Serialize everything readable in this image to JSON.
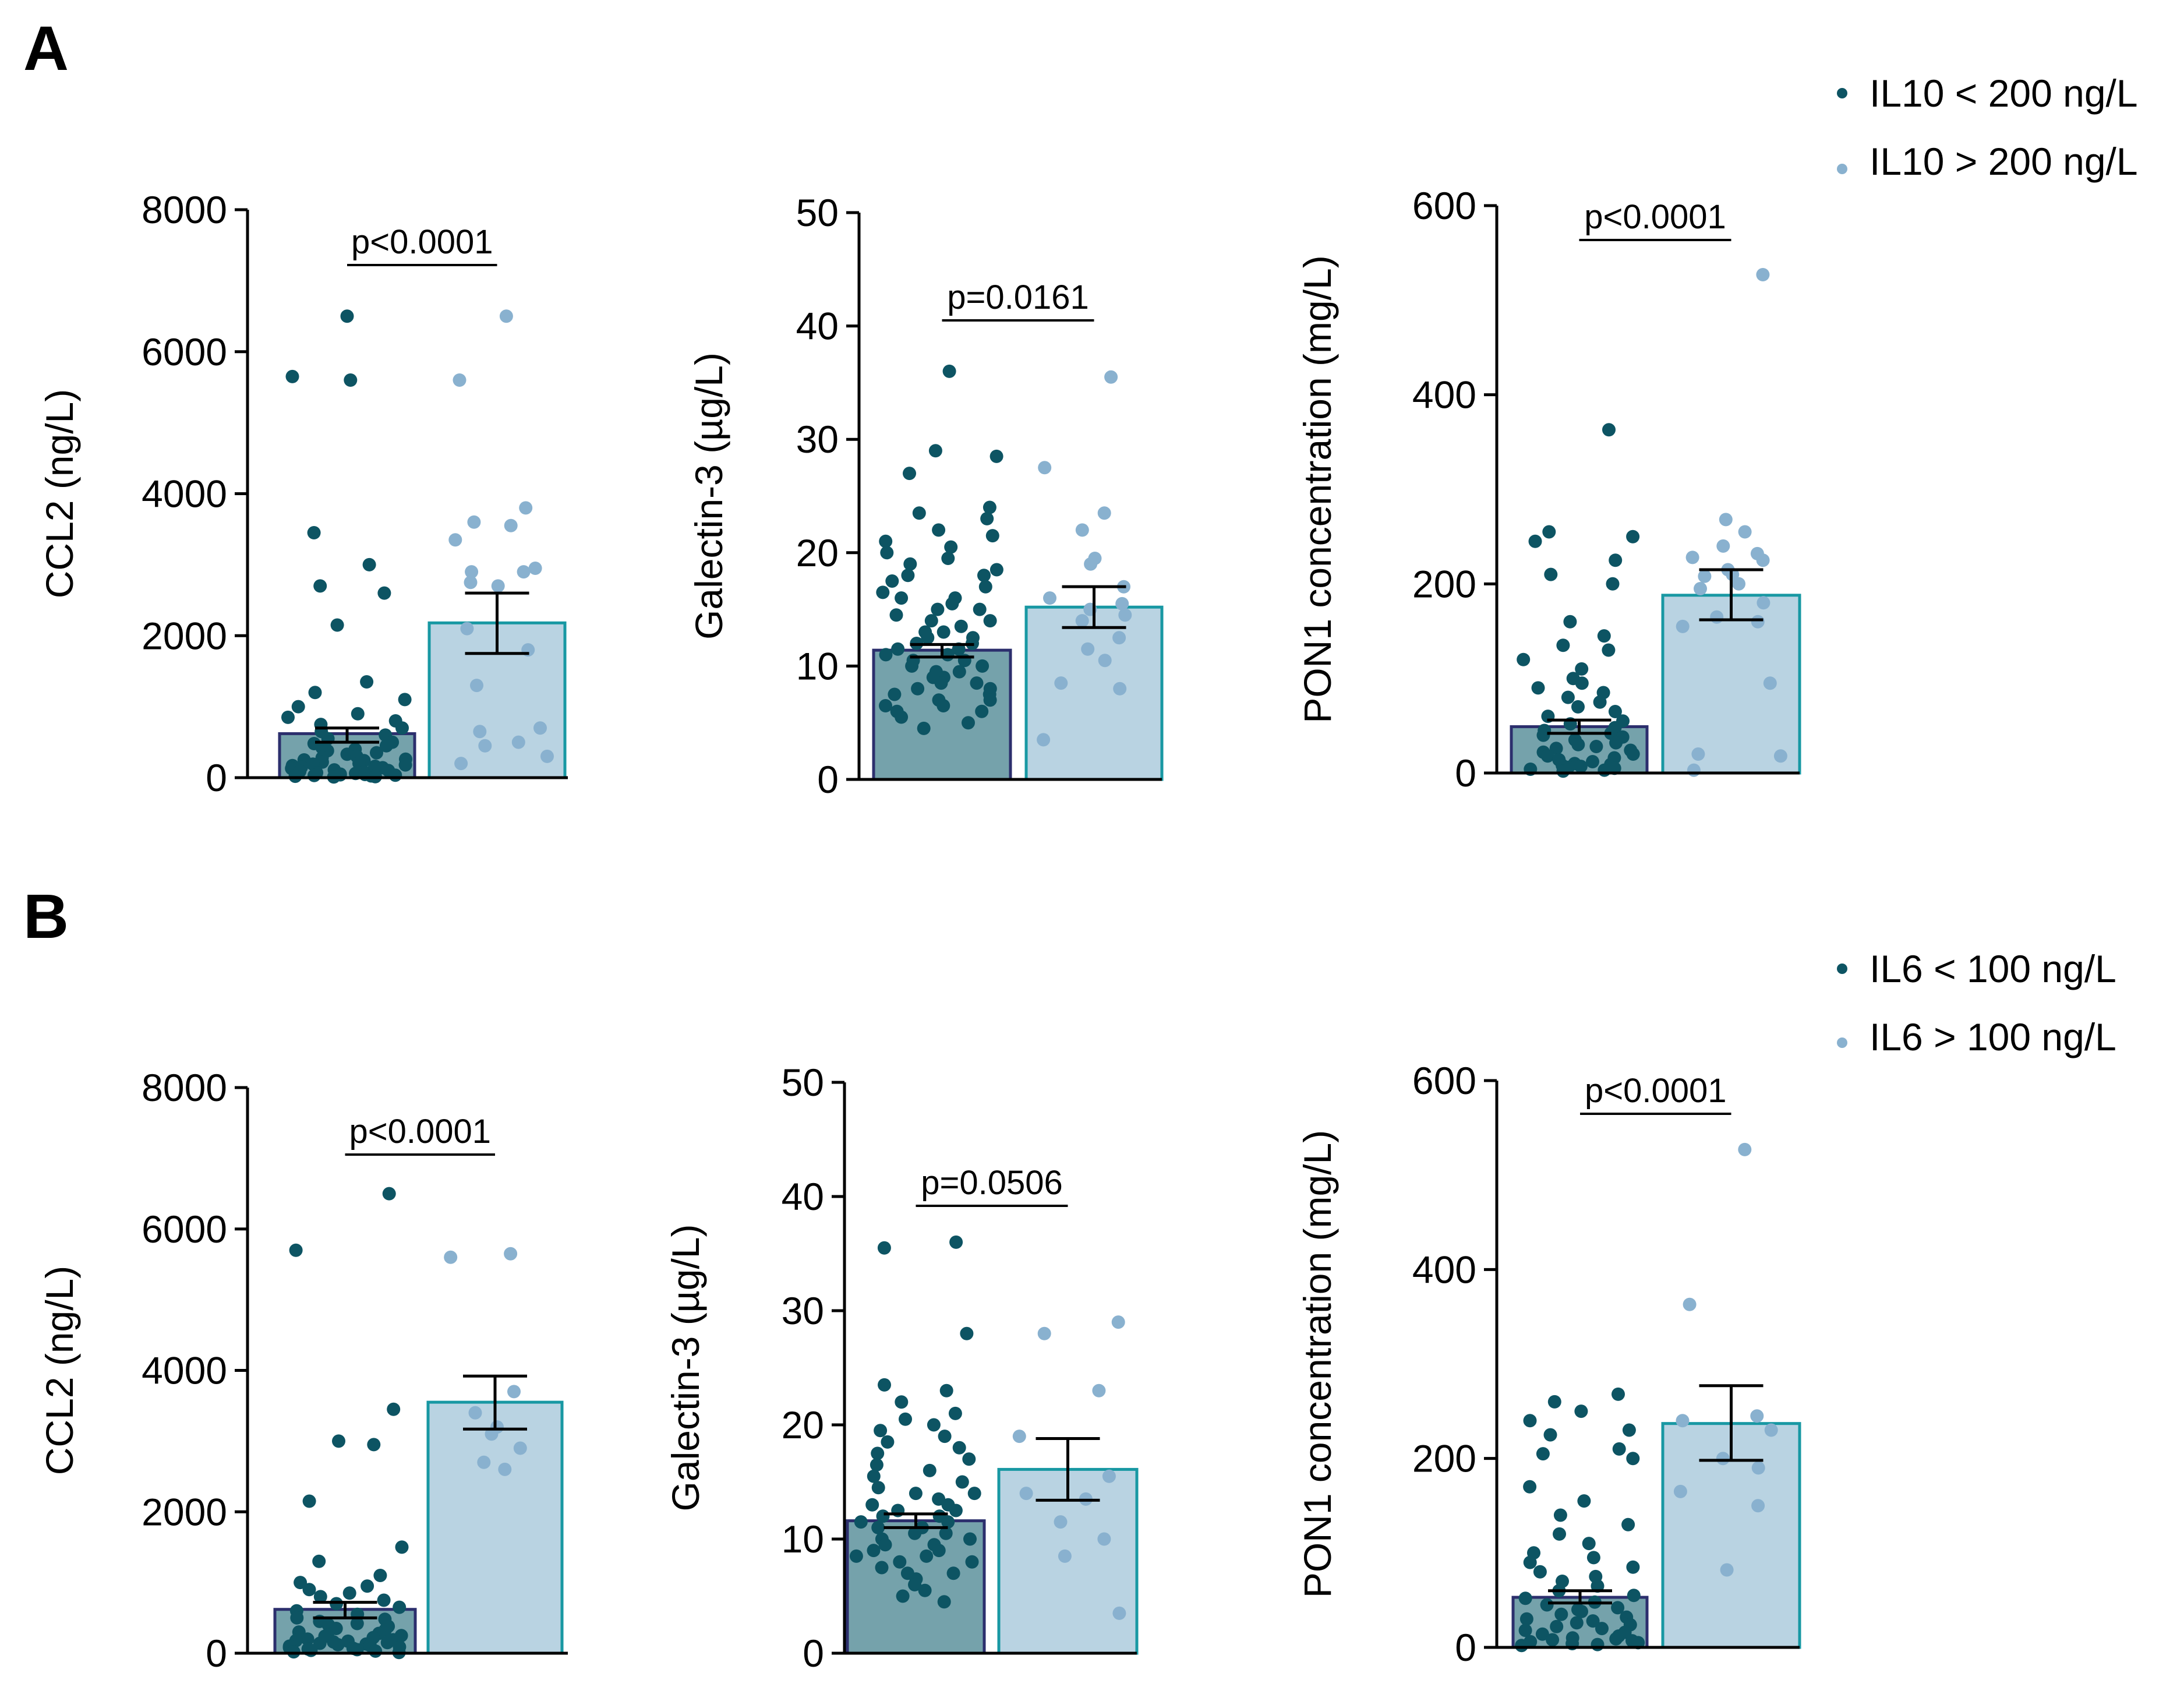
{
  "panels": [
    {
      "label": "A",
      "legend": [
        "IL10 < 200 ng/L",
        "IL10 > 200 ng/L"
      ]
    },
    {
      "label": "B",
      "legend": [
        "IL6 < 100 ng/L",
        "IL6 > 100 ng/L"
      ]
    }
  ],
  "colors": {
    "low_dot": "#0d5463",
    "high_dot": "#89b1cf",
    "low_bar_fill": "#75a2ab",
    "high_bar_fill": "#b9d3e2",
    "low_bar_edge": "#2c2f6d",
    "high_bar_edge": "#1898a3"
  },
  "chart_data": [
    {
      "panel": "A",
      "type": "bar",
      "ylabel": "CCL2 (ng/L)",
      "ylim": [
        0,
        8000
      ],
      "yticks": [
        0,
        2000,
        4000,
        6000,
        8000
      ],
      "p_label": "p<0.0001",
      "series": [
        {
          "name": "IL10 < 200 ng/L",
          "mean": 620,
          "sem_low": 500,
          "sem_high": 700,
          "points": [
            6500,
            5650,
            5600,
            3450,
            3000,
            2700,
            2600,
            2150,
            1350,
            1200,
            1100,
            1000,
            900,
            850,
            800,
            750,
            700,
            650,
            600,
            550,
            500,
            480,
            450,
            420,
            400,
            380,
            350,
            330,
            300,
            280,
            260,
            250,
            240,
            220,
            200,
            190,
            180,
            170,
            160,
            150,
            140,
            130,
            120,
            110,
            100,
            90,
            80,
            70,
            60,
            50,
            45,
            40,
            35,
            30,
            25,
            20,
            15,
            10
          ]
        },
        {
          "name": "IL10 > 200 ng/L",
          "mean": 2180,
          "sem_low": 1750,
          "sem_high": 2600,
          "points": [
            6500,
            5600,
            3800,
            3600,
            3550,
            3350,
            2950,
            2900,
            2900,
            2750,
            2700,
            2100,
            1800,
            1300,
            700,
            650,
            500,
            450,
            300,
            200
          ]
        }
      ]
    },
    {
      "panel": "A",
      "type": "bar",
      "ylabel": "Galectin-3 (µg/L)",
      "ylim": [
        0,
        50
      ],
      "yticks": [
        0,
        10,
        20,
        30,
        40,
        50
      ],
      "p_label": "p=0.0161",
      "series": [
        {
          "name": "IL10 < 200 ng/L",
          "mean": 11.4,
          "sem_low": 10.8,
          "sem_high": 11.9,
          "points": [
            36,
            29,
            28.5,
            27,
            24,
            23.5,
            23,
            22,
            21.5,
            21,
            20.5,
            20,
            19.5,
            19,
            18.5,
            18,
            18,
            17.5,
            17,
            16.5,
            16,
            16,
            15.5,
            15,
            15,
            14.5,
            14,
            14,
            13.5,
            13,
            13,
            12.5,
            12.5,
            12,
            12,
            11.5,
            11.5,
            11,
            11,
            10.5,
            10.5,
            10,
            10,
            9.5,
            9.5,
            9,
            9,
            8.5,
            8.5,
            8,
            8,
            7.5,
            7.5,
            7,
            7,
            6.5,
            6.5,
            6,
            6,
            5.5,
            5,
            4.5
          ]
        },
        {
          "name": "IL10 > 200 ng/L",
          "mean": 15.2,
          "sem_low": 13.4,
          "sem_high": 17.0,
          "points": [
            35.5,
            27.5,
            23.5,
            22,
            19.5,
            19,
            17,
            16,
            15.5,
            15,
            14.5,
            14,
            12.5,
            11.5,
            10.5,
            8.5,
            8,
            3.5
          ]
        }
      ]
    },
    {
      "panel": "A",
      "type": "bar",
      "ylabel": "PON1 concentration (mg/L)",
      "ylim": [
        0,
        600
      ],
      "yticks": [
        0,
        200,
        400,
        600
      ],
      "p_label": "p<0.0001",
      "series": [
        {
          "name": "IL10 < 200 ng/L",
          "mean": 49,
          "sem_low": 42,
          "sem_high": 56,
          "points": [
            363,
            255,
            250,
            245,
            225,
            210,
            200,
            160,
            145,
            135,
            130,
            120,
            110,
            100,
            95,
            90,
            85,
            80,
            75,
            70,
            65,
            60,
            55,
            52,
            48,
            45,
            42,
            40,
            38,
            35,
            32,
            30,
            28,
            26,
            24,
            22,
            20,
            18,
            16,
            14,
            12,
            10,
            9,
            8,
            7,
            6,
            5,
            4,
            3,
            2
          ]
        },
        {
          "name": "IL10 > 200 ng/L",
          "mean": 188,
          "sem_low": 162,
          "sem_high": 215,
          "points": [
            527,
            268,
            255,
            240,
            232,
            228,
            225,
            215,
            210,
            208,
            200,
            195,
            180,
            165,
            160,
            155,
            95,
            20,
            18,
            3
          ]
        }
      ]
    },
    {
      "panel": "B",
      "type": "bar",
      "ylabel": "CCL2 (ng/L)",
      "ylim": [
        0,
        8000
      ],
      "yticks": [
        0,
        2000,
        4000,
        6000,
        8000
      ],
      "p_label": "p<0.0001",
      "series": [
        {
          "name": "IL6 < 100 ng/L",
          "mean": 620,
          "sem_low": 500,
          "sem_high": 720,
          "points": [
            6500,
            5700,
            3450,
            3000,
            2950,
            2150,
            1500,
            1300,
            1100,
            1000,
            950,
            900,
            850,
            800,
            750,
            700,
            650,
            600,
            550,
            500,
            480,
            450,
            420,
            400,
            380,
            350,
            330,
            300,
            280,
            260,
            250,
            240,
            220,
            200,
            190,
            180,
            170,
            160,
            150,
            140,
            130,
            120,
            110,
            100,
            90,
            80,
            70,
            60,
            50,
            40,
            30,
            20,
            10
          ]
        },
        {
          "name": "IL6 > 100 ng/L",
          "mean": 3550,
          "sem_low": 3170,
          "sem_high": 3920,
          "points": [
            5650,
            5600,
            3700,
            3400,
            3200,
            3100,
            2900,
            2700,
            2600
          ]
        }
      ]
    },
    {
      "panel": "B",
      "type": "bar",
      "ylabel": "Galectin-3 (µg/L)",
      "ylim": [
        0,
        50
      ],
      "yticks": [
        0,
        10,
        20,
        30,
        40,
        50
      ],
      "p_label": "p=0.0506",
      "series": [
        {
          "name": "IL6 < 100 ng/L",
          "mean": 11.6,
          "sem_low": 11.0,
          "sem_high": 12.2,
          "points": [
            36,
            35.5,
            28,
            23.5,
            23,
            22,
            21,
            20.5,
            20,
            19.5,
            19,
            18.5,
            18,
            17.5,
            17,
            16.5,
            16,
            15.5,
            15,
            14.5,
            14,
            14,
            13.5,
            13,
            13,
            12.5,
            12.5,
            12,
            12,
            11.5,
            11.5,
            11,
            11,
            10.5,
            10.5,
            10,
            10,
            9.5,
            9.5,
            9,
            9,
            8.5,
            8.5,
            8,
            8,
            7.5,
            7,
            7,
            6.5,
            6,
            5.5,
            5,
            4.5
          ]
        },
        {
          "name": "IL6 > 100 ng/L",
          "mean": 16.1,
          "sem_low": 13.4,
          "sem_high": 18.8,
          "points": [
            29,
            28,
            23,
            19,
            15.5,
            14,
            13.5,
            11.5,
            10,
            8.5,
            3.5
          ]
        }
      ]
    },
    {
      "panel": "B",
      "type": "bar",
      "ylabel": "PON1 concentration (mg/L)",
      "ylim": [
        0,
        600
      ],
      "yticks": [
        0,
        200,
        400,
        600
      ],
      "p_label": "p<0.0001",
      "series": [
        {
          "name": "IL6 < 100 ng/L",
          "mean": 53,
          "sem_low": 47,
          "sem_high": 60,
          "points": [
            268,
            260,
            250,
            240,
            230,
            225,
            210,
            205,
            200,
            170,
            155,
            140,
            130,
            120,
            110,
            100,
            95,
            90,
            85,
            80,
            75,
            70,
            65,
            60,
            55,
            52,
            48,
            45,
            42,
            40,
            38,
            35,
            32,
            30,
            28,
            26,
            24,
            22,
            20,
            18,
            16,
            14,
            12,
            10,
            9,
            8,
            7,
            6,
            5,
            4,
            3,
            2
          ]
        },
        {
          "name": "IL6 > 100 ng/L",
          "mean": 237,
          "sem_low": 198,
          "sem_high": 277,
          "points": [
            527,
            363,
            245,
            240,
            230,
            200,
            190,
            165,
            150,
            82
          ]
        }
      ]
    }
  ]
}
